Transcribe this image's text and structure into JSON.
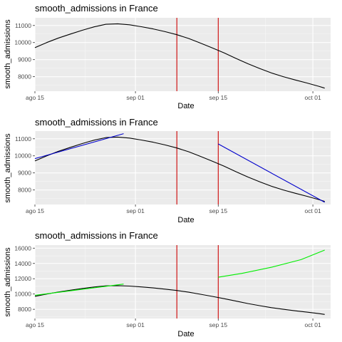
{
  "chart_data": [
    {
      "type": "line",
      "title": "smooth_admissions in France",
      "xlabel": "Date",
      "ylabel": "smooth_admissions",
      "x_ticks": [
        "ago 15",
        "sep 01",
        "sep 15",
        "oct 01"
      ],
      "y_ticks": [
        8000,
        9000,
        10000,
        11000
      ],
      "ylim": [
        7150,
        11450
      ],
      "grid": true,
      "vlines": [
        24,
        31
      ],
      "vline_color": "#cc0000",
      "series": [
        {
          "color": "#000000",
          "x": [
            0,
            2,
            4,
            6,
            8,
            10,
            12,
            14,
            16,
            18,
            20,
            22,
            24,
            26,
            28,
            30,
            32,
            34,
            36,
            38,
            40,
            42,
            44,
            46,
            48,
            49
          ],
          "values": [
            9700,
            10000,
            10270,
            10500,
            10720,
            10920,
            11070,
            11100,
            11040,
            10930,
            10800,
            10640,
            10460,
            10240,
            9970,
            9690,
            9390,
            9070,
            8760,
            8480,
            8220,
            8000,
            7810,
            7630,
            7440,
            7330
          ]
        }
      ]
    },
    {
      "type": "line",
      "title": "smooth_admissions in France",
      "xlabel": "Date",
      "ylabel": "smooth_admissions",
      "x_ticks": [
        "ago 15",
        "sep 01",
        "sep 15",
        "oct 01"
      ],
      "y_ticks": [
        8000,
        9000,
        10000,
        11000
      ],
      "ylim": [
        7150,
        11450
      ],
      "grid": true,
      "vlines": [
        24,
        31
      ],
      "vline_color": "#cc0000",
      "series": [
        {
          "color": "#000000",
          "x": [
            0,
            2,
            4,
            6,
            8,
            10,
            12,
            14,
            16,
            18,
            20,
            22,
            24,
            26,
            28,
            30,
            32,
            34,
            36,
            38,
            40,
            42,
            44,
            46,
            48,
            49
          ],
          "values": [
            9700,
            10000,
            10270,
            10500,
            10720,
            10920,
            11070,
            11100,
            11040,
            10930,
            10800,
            10640,
            10460,
            10240,
            9970,
            9690,
            9390,
            9070,
            8760,
            8480,
            8220,
            8000,
            7810,
            7630,
            7440,
            7330
          ]
        },
        {
          "color": "#0000cc",
          "x": [
            0,
            15
          ],
          "values": [
            9840,
            11300
          ]
        },
        {
          "color": "#0000cc",
          "x": [
            31,
            49
          ],
          "values": [
            10700,
            7280
          ]
        }
      ]
    },
    {
      "type": "line",
      "title": "smooth_admissions in France",
      "xlabel": "Date",
      "ylabel": "smooth_admissions",
      "x_ticks": [
        "ago 15",
        "sep 01",
        "sep 15",
        "oct 01"
      ],
      "y_ticks": [
        8000,
        10000,
        12000,
        14000,
        16000
      ],
      "ylim": [
        6800,
        16400
      ],
      "grid": true,
      "vlines": [
        24,
        31
      ],
      "vline_color": "#cc0000",
      "series": [
        {
          "color": "#000000",
          "x": [
            0,
            2,
            4,
            6,
            8,
            10,
            12,
            14,
            16,
            18,
            20,
            22,
            24,
            26,
            28,
            30,
            32,
            34,
            36,
            38,
            40,
            42,
            44,
            46,
            48,
            49
          ],
          "values": [
            9700,
            10000,
            10270,
            10500,
            10720,
            10920,
            11070,
            11100,
            11040,
            10930,
            10800,
            10640,
            10460,
            10240,
            9970,
            9690,
            9390,
            9070,
            8760,
            8480,
            8220,
            8000,
            7810,
            7630,
            7440,
            7330
          ]
        },
        {
          "color": "#00ee00",
          "x": [
            0,
            15
          ],
          "values": [
            9840,
            11300
          ]
        },
        {
          "color": "#00ee00",
          "x": [
            31,
            35,
            40,
            45,
            49
          ],
          "values": [
            12200,
            12700,
            13500,
            14500,
            15750
          ]
        }
      ]
    }
  ]
}
